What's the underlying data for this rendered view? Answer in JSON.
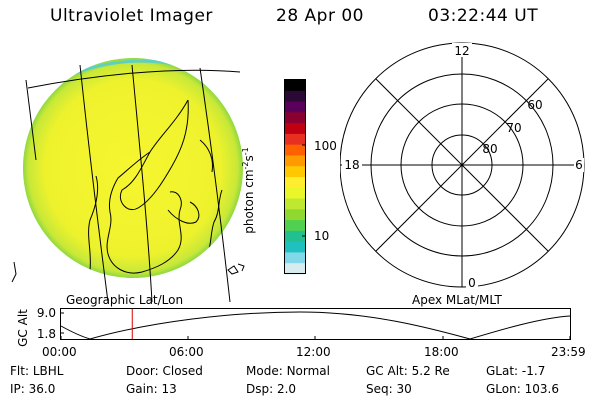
{
  "header": {
    "instrument": "Ultraviolet Imager",
    "date": "28 Apr 00",
    "time": "03:22:44 UT"
  },
  "image_panel": {
    "caption": "Geographic Lat/Lon"
  },
  "colorbar": {
    "label_main": "photon cm",
    "label_exp1": "-2",
    "label_s": "s",
    "label_exp2": "-1",
    "ticks": [
      "100",
      "10"
    ],
    "colors_top_to_bottom": [
      "#000000",
      "#2a0a35",
      "#5a005a",
      "#8a0030",
      "#c00010",
      "#e83020",
      "#ff6000",
      "#ff9a00",
      "#ffc800",
      "#ffee30",
      "#eaf52a",
      "#bfe830",
      "#8fd830",
      "#4fd050",
      "#20c090",
      "#20c0c0",
      "#80d8e8",
      "#d8ecf0"
    ]
  },
  "polar_plot": {
    "caption": "Apex MLat/MLT",
    "mlt_labels": {
      "top": "12",
      "left": "18",
      "right": "6",
      "bottom": "0"
    },
    "lat_labels": [
      "60",
      "70",
      "80"
    ]
  },
  "altitude_plot": {
    "ylabel": "GC Alt",
    "yticks": [
      "9.0",
      "1.8"
    ],
    "xticks": [
      "00:00",
      "06:00",
      "12:00",
      "18:00",
      "23:59"
    ],
    "current_time_fraction": 0.14
  },
  "info": {
    "filter_label": "Flt:",
    "filter_value": "LBHL",
    "door_label": "Door:",
    "door_value": "Closed",
    "mode_label": "Mode:",
    "mode_value": "Normal",
    "gcalt_label": "GC Alt:",
    "gcalt_value": "5.2 Re",
    "glat_label": "GLat:",
    "glat_value": "-1.7",
    "ip_label": "IP:",
    "ip_value": "36.0",
    "gain_label": "Gain:",
    "gain_value": "13",
    "dsp_label": "Dsp:",
    "dsp_value": "2.0",
    "seq_label": "Seq:",
    "seq_value": "30",
    "glon_label": "GLon:",
    "glon_value": "103.6"
  },
  "colors": {
    "disk_fill": "#f2f22a",
    "disk_edge": "#9fdc38",
    "marker": "#dd0000"
  }
}
